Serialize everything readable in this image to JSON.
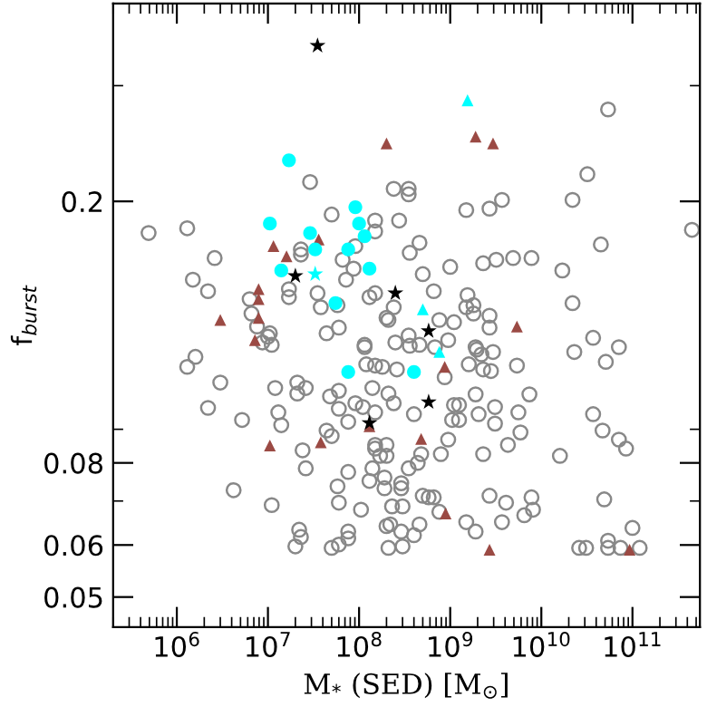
{
  "chart_data": {
    "type": "scatter",
    "xlabel": "M$_{*}$ (SED) [M$_{⊙}$]",
    "ylabel": "f$_{burst}$",
    "log": "xy",
    "xlim": [
      200000,
      550000000000
    ],
    "ylim": [
      0.045,
      0.4
    ],
    "xticks": [
      {
        "value": 1000000,
        "label": "10$^{6}$"
      },
      {
        "value": 10000000,
        "label": "10$^{7}$"
      },
      {
        "value": 100000000,
        "label": "10$^{8}$"
      },
      {
        "value": 1000000000,
        "label": "10$^{9}$"
      },
      {
        "value": 10000000000,
        "label": "10$^{10}$"
      },
      {
        "value": 100000000000,
        "label": "10$^{11}$"
      }
    ],
    "yticks": [
      0.05,
      0.06,
      0.08,
      0.2
    ],
    "grid": false,
    "series": [
      {
        "type": "scatter",
        "marker": "circle",
        "color": "#888888",
        "x": [
          29000000.0,
          50000000.0,
          490000.0,
          1300000.0,
          2600000.0,
          1500000.0,
          2200000.0,
          6300000.0,
          6600000.0,
          7600000.0,
          10500000.0,
          10000000.0,
          23000000.0,
          23000000.0,
          17000000.0,
          17000000.0,
          35000000.0,
          38000000.0,
          58000000.0,
          60000000.0,
          44000000.0,
          91000000.0,
          66000000.0,
          72000000.0,
          87000000.0,
          150000000.0,
          150000000.0,
          130000000.0,
          150000000.0,
          200000000.0,
          115000000.0,
          240000000.0,
          350000000.0,
          350000000.0,
          1500000000.0,
          2700000000.0,
          3700000000.0,
          22000000000.0,
          32000000000.0,
          54000000000.0,
          275000000.0,
          360000000.0,
          460000000.0,
          500000000.0,
          1000000000.0,
          660000000.0,
          240000000.0,
          210000000.0,
          1550000000.0,
          1500000000.0,
          1800000000.0,
          1800000000.0,
          1100000000.0,
          760000000.0,
          2700000000.0,
          2700000000.0,
          2300000000.0,
          3200000000.0,
          4900000000.0,
          7800000000.0,
          17000000000.0,
          22000000000.0,
          45000000000.0,
          450000000000.0,
          37000000000.0,
          71000000000.0,
          250000000.0,
          350000000.0,
          460000000.0,
          950000000.0,
          1900000000.0,
          1600000.0,
          1300000.0,
          3000000.0,
          2200000.0,
          5200000.0,
          4200000.0,
          11000000.0,
          12000000.0,
          13000000.0,
          14000000.0,
          21000000.0,
          21000000.0,
          26000000.0,
          24000000.0,
          26000000.0,
          48000000.0,
          60000000.0,
          60000000.0,
          76000000.0,
          91000000.0,
          110000000.0,
          150000000.0,
          115000000.0,
          120000000.0,
          150000000.0,
          180000000.0,
          140000000.0,
          44000000.0,
          50000000.0,
          76000000.0,
          58000000.0,
          60000000.0,
          105000000.0,
          140000000.0,
          130000000.0,
          150000000.0,
          170000000.0,
          76000000.0,
          76000000.0,
          60000000.0,
          50000000.0,
          22000000.0,
          23000000.0,
          20000000.0,
          8700000.0,
          11000000.0,
          200000000.0,
          210000000.0,
          260000000.0,
          360000000.0,
          210000000.0,
          240000000.0,
          400000000.0,
          150000000.0,
          200000000.0,
          200000000.0,
          190000000.0,
          190000000.0,
          290000000.0,
          290000000.0,
          230000000.0,
          300000000.0,
          350000000.0,
          440000000.0,
          480000000.0,
          500000000.0,
          580000000.0,
          660000000.0,
          460000000.0,
          400000000.0,
          290000000.0,
          300000000.0,
          220000000.0,
          680000000.0,
          870000000.0,
          950000000.0,
          790000000.0,
          1100000000.0,
          1250000000.0,
          1050000000.0,
          1250000000.0,
          1900000000.0,
          2050000000.0,
          2300000000.0,
          3100000000.0,
          3100000000.0,
          4300000000.0,
          5900000000.0,
          5600000000.0,
          7400000000.0,
          2300000000.0,
          1600000000.0,
          2800000000.0,
          1950000000.0,
          2200000000.0,
          2950000000.0,
          5400000000.0,
          2700000000.0,
          4100000000.0,
          7800000000.0,
          8100000000.0,
          6500000000.0,
          3700000000.0,
          1900000000.0,
          1500000000.0,
          760000000.0,
          16000000000.0,
          23000000000.0,
          51000000000.0,
          37000000000.0,
          47000000000.0,
          71000000000.0,
          85000000000.0,
          49000000000.0,
          100000000000.0,
          26000000000.0,
          31000000000.0,
          54000000000.0,
          54000000000.0,
          74000000000.0,
          120000000000.0
        ],
        "values": [
          0.214,
          0.191,
          0.179,
          0.182,
          0.164,
          0.152,
          0.146,
          0.142,
          0.135,
          0.129,
          0.126,
          0.1245,
          0.169,
          0.166,
          0.147,
          0.143,
          0.145,
          0.138,
          0.139,
          0.1285,
          0.126,
          0.171,
          0.163,
          0.152,
          0.158,
          0.187,
          0.18,
          0.143,
          0.145,
          0.133,
          0.121,
          0.209,
          0.209,
          0.205,
          0.194,
          0.195,
          0.201,
          0.201,
          0.22,
          0.276,
          0.187,
          0.167,
          0.173,
          0.155,
          0.159,
          0.146,
          0.138,
          0.132,
          0.144,
          0.138,
          0.139,
          0.135,
          0.131,
          0.132,
          0.134,
          0.1285,
          0.161,
          0.163,
          0.164,
          0.164,
          0.157,
          0.14,
          0.172,
          0.181,
          0.124,
          0.12,
          0.122,
          0.125,
          0.121,
          0.123,
          0.12,
          0.116,
          0.112,
          0.106,
          0.097,
          0.093,
          0.0727,
          0.069,
          0.104,
          0.0955,
          0.0913,
          0.106,
          0.102,
          0.104,
          0.0836,
          0.0785,
          0.101,
          0.103,
          0.0967,
          0.0924,
          0.0986,
          0.0973,
          0.0955,
          0.12,
          0.113,
          0.1125,
          0.112,
          0.104,
          0.0896,
          0.0879,
          0.0775,
          0.0737,
          0.0696,
          0.0679,
          0.0785,
          0.0751,
          0.0841,
          0.082,
          0.0629,
          0.0614,
          0.0601,
          0.0594,
          0.0633,
          0.0617,
          0.0597,
          0.122,
          0.121,
          0.0641,
          0.0594,
          0.111,
          0.1206,
          0.102,
          0.0986,
          0.0949,
          0.0852,
          0.082,
          0.0852,
          0.076,
          0.0732,
          0.0745,
          0.0732,
          0.0687,
          0.0687,
          0.0785,
          0.08,
          0.0825,
          0.0713,
          0.0709,
          0.0709,
          0.0645,
          0.0621,
          0.0629,
          0.0597,
          0.0645,
          0.12,
          0.108,
          0.0868,
          0.0825,
          0.098,
          0.098,
          0.093,
          0.093,
          0.1017,
          0.0949,
          0.0825,
          0.0973,
          0.0918,
          0.0852,
          0.089,
          0.0955,
          0.1017,
          0.111,
          0.113,
          0.1104,
          0.119,
          0.117,
          0.118,
          0.1125,
          0.0713,
          0.0696,
          0.0709,
          0.0679,
          0.0666,
          0.065,
          0.0629,
          0.065,
          0.0674,
          0.082,
          0.118,
          0.114,
          0.0949,
          0.0896,
          0.0868,
          0.0841,
          0.0704,
          0.0637,
          0.0594,
          0.0594,
          0.0609,
          0.0594,
          0.0594,
          0.0594
        ]
      },
      {
        "type": "scatter",
        "marker": "triangle",
        "color": "#9b4a44",
        "x": [
          200000000.0,
          11500000.0,
          36000000.0,
          16000000.0,
          3000000.0,
          7900000.0,
          7900000.0,
          7900000.0,
          1900000000.0,
          2950000000.0,
          5400000000.0,
          7200000.0,
          10500000.0,
          38000000.0,
          130000000.0,
          870000000.0,
          480000000.0,
          890000000.0,
          2700000000.0,
          93000000000.0
        ],
        "values": [
          0.245,
          0.171,
          0.175,
          0.165,
          0.132,
          0.147,
          0.142,
          0.133,
          0.251,
          0.245,
          0.129,
          0.123,
          0.085,
          0.086,
          0.091,
          0.112,
          0.087,
          0.067,
          0.059,
          0.059
        ]
      },
      {
        "type": "scatter",
        "marker": "circle",
        "color": "#00ffff",
        "x": [
          17000000.0,
          10500000.0,
          29000000.0,
          33000000.0,
          14000000.0,
          55000000.0,
          91000000.0,
          100000000.0,
          115000000.0,
          76000000.0,
          130000000.0,
          76000000.0,
          400000000.0
        ],
        "values": [
          0.231,
          0.185,
          0.179,
          0.169,
          0.157,
          0.14,
          0.196,
          0.185,
          0.177,
          0.169,
          0.158,
          0.11,
          0.11
        ]
      },
      {
        "type": "scatter",
        "marker": "triangle",
        "color": "#00ffff",
        "x": [
          1550000000.0,
          500000000.0,
          760000000.0
        ],
        "values": [
          0.285,
          0.137,
          0.118
        ]
      },
      {
        "type": "scatter",
        "marker": "star",
        "color": "#00ffff",
        "x": [
          33000000.0
        ],
        "values": [
          0.155
        ]
      },
      {
        "type": "scatter",
        "marker": "star",
        "color": "#000000",
        "x": [
          35000000.0,
          20000000.0,
          250000000.0,
          580000000.0,
          130000000.0,
          580000000.0
        ],
        "values": [
          0.345,
          0.154,
          0.145,
          0.127,
          0.092,
          0.099
        ]
      }
    ]
  }
}
